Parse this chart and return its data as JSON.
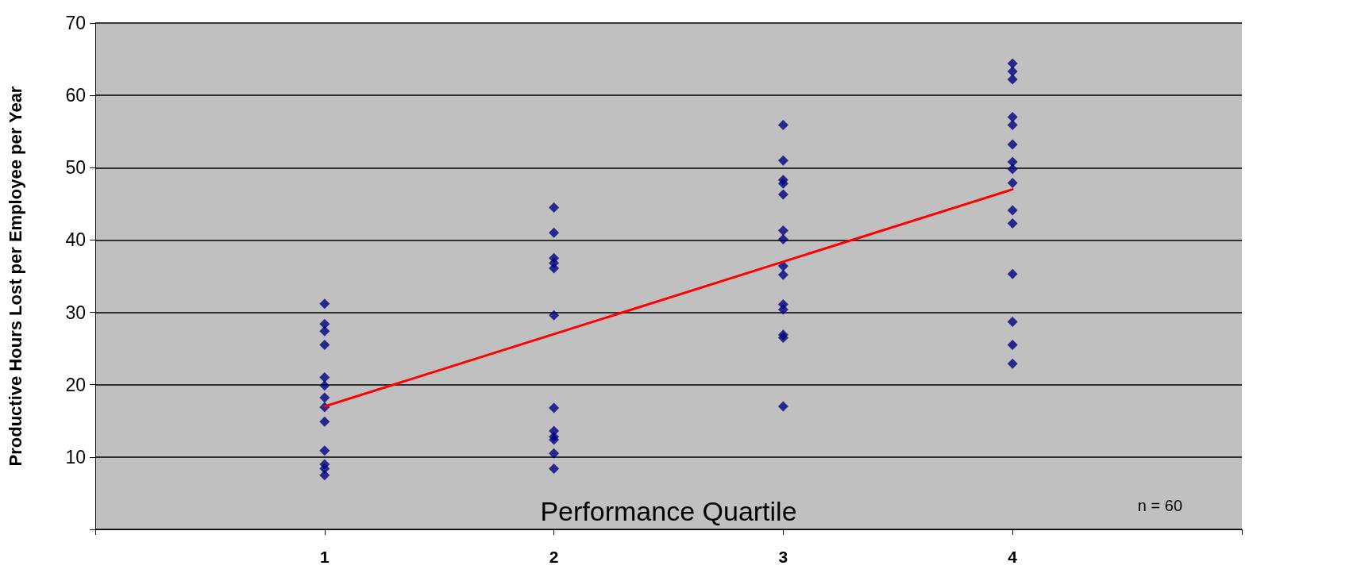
{
  "chart_data": {
    "type": "scatter",
    "ylabel": "Productive Hours Lost per Employee per Year",
    "xlabel": "Performance Quartile",
    "annotations": [
      "n = 60"
    ],
    "xlim": [
      0,
      5
    ],
    "xticks": [
      {
        "value": 0,
        "label": null
      },
      1,
      2,
      3,
      4,
      {
        "value": 5,
        "label": null
      }
    ],
    "ylim": [
      0,
      70
    ],
    "yticks": [
      {
        "value": 0,
        "label": null
      },
      10,
      20,
      30,
      40,
      50,
      60,
      70
    ],
    "grid": "y",
    "marker": "diamond",
    "series": [
      {
        "color": "#000080",
        "x": [
          1,
          1,
          1,
          1,
          1,
          1,
          1,
          1,
          1,
          1,
          1,
          1,
          1,
          2,
          2,
          2,
          2,
          2,
          2,
          2,
          2,
          2,
          2,
          2,
          2,
          3,
          3,
          3,
          3,
          3,
          3,
          3,
          3,
          3,
          3,
          3,
          3,
          3,
          3,
          4,
          4,
          4,
          4,
          4,
          4,
          4,
          4,
          4,
          4,
          4,
          4,
          4,
          4,
          4
        ],
        "values": [
          31.2,
          28.4,
          27.4,
          25.5,
          21.0,
          19.9,
          18.2,
          16.9,
          14.9,
          10.9,
          9.0,
          8.4,
          7.5,
          44.5,
          41.0,
          37.5,
          36.8,
          36.1,
          29.6,
          16.8,
          13.6,
          12.8,
          12.4,
          10.5,
          8.4,
          55.9,
          51.0,
          48.3,
          47.8,
          46.3,
          41.3,
          40.1,
          36.4,
          35.2,
          31.1,
          30.4,
          26.9,
          26.5,
          17.0,
          64.4,
          63.3,
          62.2,
          57.0,
          55.9,
          53.2,
          50.8,
          49.8,
          47.9,
          44.1,
          42.3,
          35.3,
          28.7,
          25.5,
          22.9
        ]
      },
      {
        "type": "line",
        "color": "#ff0000",
        "marker": "none",
        "line_style": "solid",
        "x": [
          1,
          4
        ],
        "values": [
          17,
          47
        ]
      }
    ]
  }
}
